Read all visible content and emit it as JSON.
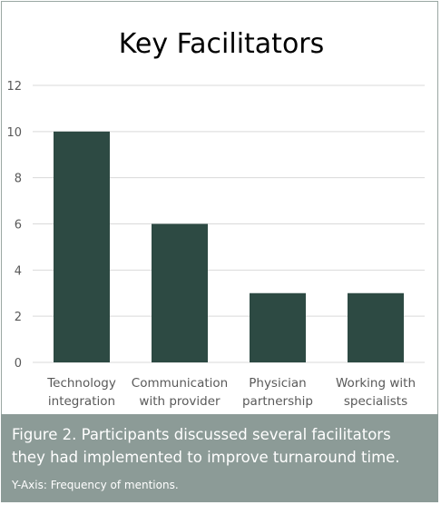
{
  "colors": {
    "bar": "#2d4a43",
    "grid": "#d9d9d9",
    "axis_text": "#595959",
    "title_text": "#000000",
    "caption_bg": "#8c9b97",
    "caption_text": "#ffffff"
  },
  "chart_data": {
    "type": "bar",
    "title": "Key Facilitators",
    "categories": [
      [
        "Technology",
        "integration"
      ],
      [
        "Communication",
        "with provider"
      ],
      [
        "Physician",
        "partnership"
      ],
      [
        "Working with",
        "specialists"
      ]
    ],
    "values": [
      10,
      6,
      3,
      3
    ],
    "ylim": [
      0,
      12
    ],
    "yticks": [
      0,
      2,
      4,
      6,
      8,
      10,
      12
    ],
    "grid": true,
    "legend": "none"
  },
  "caption": {
    "main": "Figure 2. Participants discussed several facilitators they had implemented to improve turnaround time.",
    "axis_note": "Y-Axis: Frequency of mentions."
  }
}
